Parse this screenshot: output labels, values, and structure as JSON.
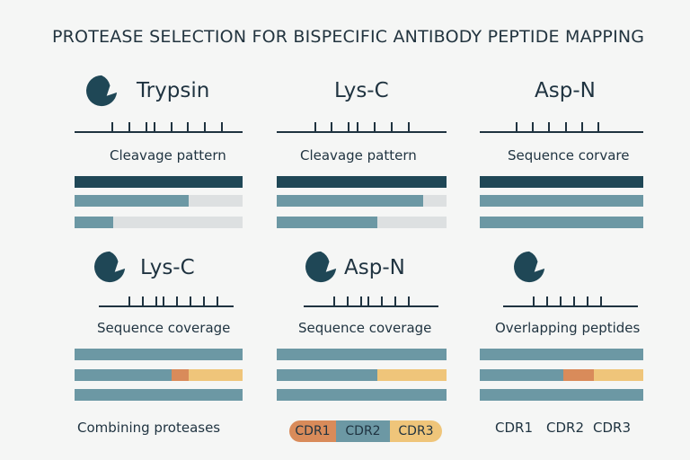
{
  "title": "PROTEASE SELECTION FOR BISPECIFIC ANTIBODY PEPTIDE MAPPING",
  "colors": {
    "dark": "#1f4756",
    "teal": "#6c98a4",
    "light": "#dde0e1",
    "orange": "#d98b5a",
    "yellow": "#efc57a"
  },
  "panels": [
    {
      "name": "Trypsin",
      "caption": "Cleavage pattern",
      "icon": "pac-icon",
      "bars": [
        [
          {
            "color": "dark",
            "from": 0,
            "to": 1
          }
        ],
        [
          {
            "color": "teal",
            "from": 0,
            "to": 0.68
          }
        ],
        [
          {
            "color": "teal",
            "from": 0,
            "to": 0.23
          }
        ]
      ]
    },
    {
      "name": "Lys-C",
      "caption": "Cleavage pattern",
      "icon": "",
      "bars": [
        [
          {
            "color": "dark",
            "from": 0,
            "to": 1
          }
        ],
        [
          {
            "color": "teal",
            "from": 0,
            "to": 0.86
          }
        ],
        [
          {
            "color": "teal",
            "from": 0,
            "to": 0.59
          }
        ]
      ]
    },
    {
      "name": "Asp-N",
      "caption": "Sequence corvare",
      "icon": "",
      "bars": [
        [
          {
            "color": "dark",
            "from": 0,
            "to": 1
          }
        ],
        [
          {
            "color": "teal",
            "from": 0,
            "to": 1
          }
        ],
        [
          {
            "color": "teal",
            "from": 0,
            "to": 1
          }
        ]
      ]
    },
    {
      "name": "Lys-C",
      "caption": "Sequence coverage",
      "icon": "pac-icon",
      "bars": [
        [
          {
            "color": "teal",
            "from": 0,
            "to": 1
          }
        ],
        [
          {
            "color": "teal",
            "from": 0,
            "to": 0.58
          },
          {
            "color": "orange",
            "from": 0.58,
            "to": 0.68
          },
          {
            "color": "yellow",
            "from": 0.68,
            "to": 1
          }
        ],
        [
          {
            "color": "teal",
            "from": 0,
            "to": 1
          }
        ]
      ]
    },
    {
      "name": "Asp-N",
      "caption": "Sequence coverage",
      "icon": "pac-icon",
      "bars": [
        [
          {
            "color": "teal",
            "from": 0,
            "to": 1
          }
        ],
        [
          {
            "color": "teal",
            "from": 0,
            "to": 0.59
          },
          {
            "color": "yellow",
            "from": 0.59,
            "to": 1
          }
        ],
        [
          {
            "color": "teal",
            "from": 0,
            "to": 1
          }
        ]
      ]
    },
    {
      "name": "",
      "caption": "Overlapping peptides",
      "icon": "pac-icon",
      "bars": [
        [
          {
            "color": "teal",
            "from": 0,
            "to": 1
          }
        ],
        [
          {
            "color": "teal",
            "from": 0,
            "to": 0.51
          },
          {
            "color": "orange",
            "from": 0.51,
            "to": 0.7
          },
          {
            "color": "yellow",
            "from": 0.7,
            "to": 1
          }
        ],
        [
          {
            "color": "teal",
            "from": 0,
            "to": 1
          }
        ]
      ]
    }
  ],
  "bottom": {
    "combining": "Combining proteases",
    "pill": [
      {
        "label": "CDR1",
        "color": "orange"
      },
      {
        "label": "CDR2",
        "color": "teal"
      },
      {
        "label": "CDR3",
        "color": "yellow"
      }
    ],
    "cdr_labels": [
      "CDR1",
      "CDR2",
      "CDR3"
    ]
  }
}
